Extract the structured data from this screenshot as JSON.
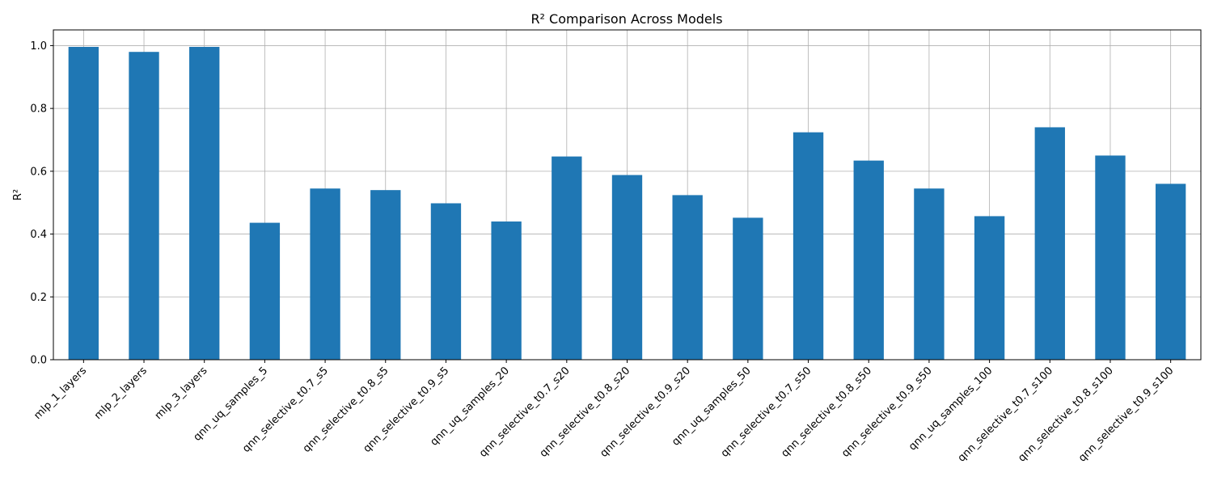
{
  "chart_data": {
    "type": "bar",
    "title": "R² Comparison Across Models",
    "xlabel": "",
    "ylabel": "R²",
    "ylim": [
      0,
      1.05
    ],
    "yticks": [
      0.0,
      0.2,
      0.4,
      0.6,
      0.8,
      1.0
    ],
    "ytick_labels": [
      "0.0",
      "0.2",
      "0.4",
      "0.6",
      "0.8",
      "1.0"
    ],
    "grid": true,
    "bar_color": "#1f77b4",
    "categories": [
      "mlp_1_layers",
      "mlp_2_layers",
      "mlp_3_layers",
      "qnn_uq_samples_5",
      "qnn_selective_t0.7_s5",
      "qnn_selective_t0.8_s5",
      "qnn_selective_t0.9_s5",
      "qnn_uq_samples_20",
      "qnn_selective_t0.7_s20",
      "qnn_selective_t0.8_s20",
      "qnn_selective_t0.9_s20",
      "qnn_uq_samples_50",
      "qnn_selective_t0.7_s50",
      "qnn_selective_t0.8_s50",
      "qnn_selective_t0.9_s50",
      "qnn_uq_samples_100",
      "qnn_selective_t0.7_s100",
      "qnn_selective_t0.8_s100",
      "qnn_selective_t0.9_s100"
    ],
    "values": [
      0.996,
      0.98,
      0.996,
      0.436,
      0.545,
      0.54,
      0.498,
      0.44,
      0.647,
      0.588,
      0.524,
      0.452,
      0.724,
      0.634,
      0.545,
      0.457,
      0.74,
      0.65,
      0.56
    ]
  }
}
